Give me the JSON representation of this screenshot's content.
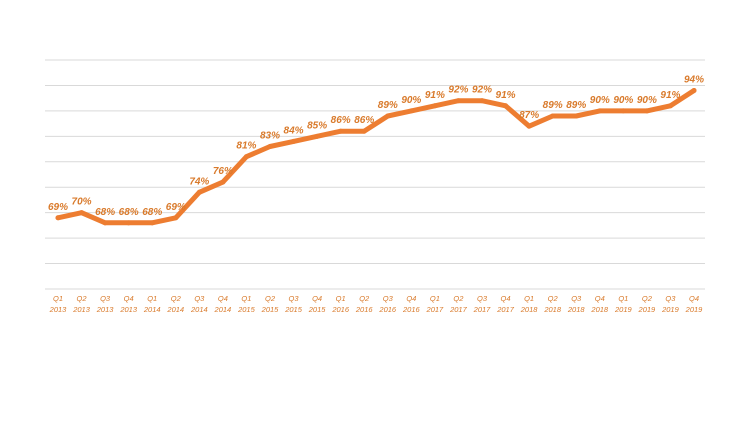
{
  "colors": {
    "series": "#ED7D31",
    "label": "#D97A2B",
    "grid": "#D9D9D9",
    "background": "#FFFFFF"
  },
  "chart_data": {
    "type": "line",
    "title": "",
    "xlabel": "",
    "ylabel": "",
    "grid": true,
    "ylim": [
      55,
      100
    ],
    "categories": [
      [
        "Q1",
        "2013"
      ],
      [
        "Q2",
        "2013"
      ],
      [
        "Q3",
        "2013"
      ],
      [
        "Q4",
        "2013"
      ],
      [
        "Q1",
        "2014"
      ],
      [
        "Q2",
        "2014"
      ],
      [
        "Q3",
        "2014"
      ],
      [
        "Q4",
        "2014"
      ],
      [
        "Q1",
        "2015"
      ],
      [
        "Q2",
        "2015"
      ],
      [
        "Q3",
        "2015"
      ],
      [
        "Q4",
        "2015"
      ],
      [
        "Q1",
        "2016"
      ],
      [
        "Q2",
        "2016"
      ],
      [
        "Q3",
        "2016"
      ],
      [
        "Q4",
        "2016"
      ],
      [
        "Q1",
        "2017"
      ],
      [
        "Q2",
        "2017"
      ],
      [
        "Q3",
        "2017"
      ],
      [
        "Q4",
        "2017"
      ],
      [
        "Q1",
        "2018"
      ],
      [
        "Q2",
        "2018"
      ],
      [
        "Q3",
        "2018"
      ],
      [
        "Q4",
        "2018"
      ],
      [
        "Q1",
        "2019"
      ],
      [
        "Q2",
        "2019"
      ],
      [
        "Q3",
        "2019"
      ],
      [
        "Q4",
        "2019"
      ]
    ],
    "values": [
      69,
      70,
      68,
      68,
      68,
      69,
      74,
      76,
      81,
      83,
      84,
      85,
      86,
      86,
      89,
      90,
      91,
      92,
      92,
      91,
      87,
      89,
      89,
      90,
      90,
      90,
      91,
      94
    ],
    "data_labels": [
      "69%",
      "70%",
      "68%",
      "68%",
      "68%",
      "69%",
      "74%",
      "76%",
      "81%",
      "83%",
      "84%",
      "85%",
      "86%",
      "86%",
      "89%",
      "90%",
      "91%",
      "92%",
      "92%",
      "91%",
      "87%",
      "89%",
      "89%",
      "90%",
      "90%",
      "90%",
      "91%",
      "94%"
    ]
  }
}
